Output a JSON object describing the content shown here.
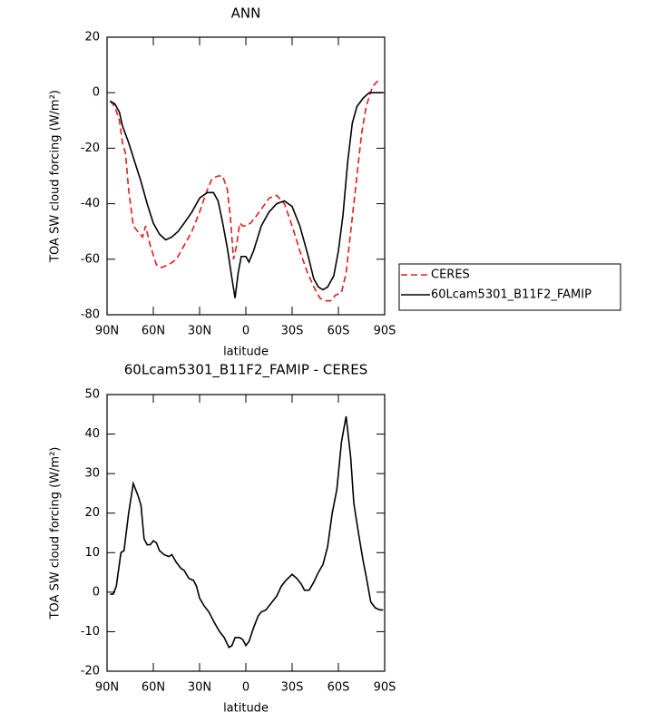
{
  "chart_data": [
    {
      "type": "line",
      "title": "ANN",
      "x_label": "latitude",
      "y_label": "TOA SW cloud forcing (W/m²)",
      "xlim": [
        90,
        -90
      ],
      "xticks": [
        {
          "value": 90,
          "label": "90N"
        },
        {
          "value": 60,
          "label": "60N"
        },
        {
          "value": 30,
          "label": "30N"
        },
        0,
        {
          "value": -30,
          "label": "30S"
        },
        {
          "value": -60,
          "label": "60S"
        },
        {
          "value": -90,
          "label": "90S"
        }
      ],
      "ylim": [
        -80,
        20
      ],
      "yticks": [
        -80,
        -60,
        -40,
        -20,
        0,
        20
      ],
      "legend": "right",
      "series": [
        {
          "name": "CERES",
          "color": "#e41a1c",
          "dash": true,
          "x": [
            88,
            85,
            82,
            80,
            78,
            76,
            73,
            70,
            67,
            65,
            62,
            58,
            55,
            50,
            45,
            40,
            35,
            30,
            25,
            22,
            18,
            15,
            12,
            10,
            8,
            6,
            4,
            2,
            0,
            -3,
            -6,
            -10,
            -15,
            -20,
            -25,
            -30,
            -35,
            -40,
            -45,
            -48,
            -52,
            -55,
            -58,
            -62,
            -65,
            -68,
            -72,
            -75,
            -78,
            -82,
            -85,
            -88
          ],
          "values": [
            -3,
            -5,
            -10,
            -18,
            -22,
            -35,
            -48,
            -50,
            -52,
            -48,
            -55,
            -62,
            -63,
            -62,
            -60,
            -55,
            -50,
            -43,
            -35,
            -31,
            -30,
            -30,
            -35,
            -45,
            -60,
            -55,
            -47,
            -48,
            -48,
            -47,
            -45,
            -42,
            -38,
            -37,
            -40,
            -48,
            -57,
            -65,
            -71,
            -74,
            -75,
            -75,
            -73,
            -72,
            -65,
            -50,
            -30,
            -15,
            -5,
            2,
            4,
            4
          ]
        },
        {
          "name": "60Lcam5301_B11F2_FAMIP",
          "color": "#000000",
          "dash": false,
          "x": [
            88,
            85,
            82,
            80,
            76,
            72,
            68,
            64,
            60,
            56,
            52,
            48,
            44,
            40,
            35,
            30,
            25,
            21,
            18,
            15,
            12,
            9,
            7,
            5,
            3,
            0,
            -2,
            -5,
            -10,
            -15,
            -20,
            -25,
            -30,
            -35,
            -40,
            -44,
            -47,
            -50,
            -53,
            -57,
            -60,
            -63,
            -66,
            -69,
            -72,
            -76,
            -80,
            -85,
            -89
          ],
          "values": [
            -3,
            -4,
            -7,
            -12,
            -18,
            -25,
            -32,
            -40,
            -47,
            -51,
            -53,
            -52,
            -50,
            -47,
            -43,
            -38,
            -36,
            -36,
            -39,
            -47,
            -56,
            -67,
            -74,
            -65,
            -59,
            -59,
            -61,
            -57,
            -48,
            -43,
            -40,
            -39,
            -41,
            -48,
            -58,
            -67,
            -70,
            -71,
            -70,
            -66,
            -57,
            -44,
            -25,
            -11,
            -5,
            -2,
            0,
            0,
            0
          ]
        }
      ]
    },
    {
      "type": "line",
      "title": "60Lcam5301_B11F2_FAMIP - CERES",
      "x_label": "latitude",
      "y_label": "TOA SW cloud forcing (W/m²)",
      "xlim": [
        90,
        -90
      ],
      "xticks": [
        {
          "value": 90,
          "label": "90N"
        },
        {
          "value": 60,
          "label": "60N"
        },
        {
          "value": 30,
          "label": "30N"
        },
        0,
        {
          "value": -30,
          "label": "30S"
        },
        {
          "value": -60,
          "label": "60S"
        },
        {
          "value": -90,
          "label": "90S"
        }
      ],
      "ylim": [
        -20,
        50
      ],
      "yticks": [
        -20,
        -10,
        0,
        10,
        20,
        30,
        40,
        50
      ],
      "series": [
        {
          "color": "#000000",
          "dash": false,
          "x": [
            88,
            86,
            84,
            81,
            79,
            76,
            73,
            70,
            68,
            66,
            64,
            62,
            60,
            58,
            56,
            53,
            50,
            48,
            45,
            42,
            40,
            37,
            34,
            32,
            30,
            27,
            24,
            20,
            17,
            14,
            11,
            9,
            7,
            4,
            2,
            0,
            -2,
            -5,
            -8,
            -10,
            -13,
            -16,
            -20,
            -23,
            -26,
            -30,
            -33,
            -36,
            -38,
            -41,
            -44,
            -47,
            -50,
            -53,
            -56,
            -59,
            -62,
            -65,
            -68,
            -70,
            -73,
            -76,
            -78,
            -81,
            -84,
            -87,
            -89
          ],
          "values": [
            -0.5,
            -0.5,
            1.5,
            10,
            10.5,
            20,
            27.5,
            24.5,
            22,
            13.5,
            12,
            12,
            13,
            12.5,
            10.5,
            9.5,
            9,
            9.5,
            7.5,
            6,
            5.5,
            3.5,
            3,
            1.5,
            -1.5,
            -3.5,
            -5,
            -8,
            -10,
            -11.5,
            -14,
            -13.5,
            -11.5,
            -11.5,
            -12,
            -13.5,
            -12.5,
            -9,
            -6,
            -5,
            -4.5,
            -3,
            -1,
            1.5,
            3,
            4.5,
            3.5,
            2,
            0.5,
            0.5,
            2.5,
            5,
            7,
            11.5,
            20,
            26,
            38,
            44.5,
            34,
            22.5,
            15,
            8,
            4,
            -2.5,
            -4,
            -4.5,
            -4.5
          ]
        }
      ]
    }
  ]
}
